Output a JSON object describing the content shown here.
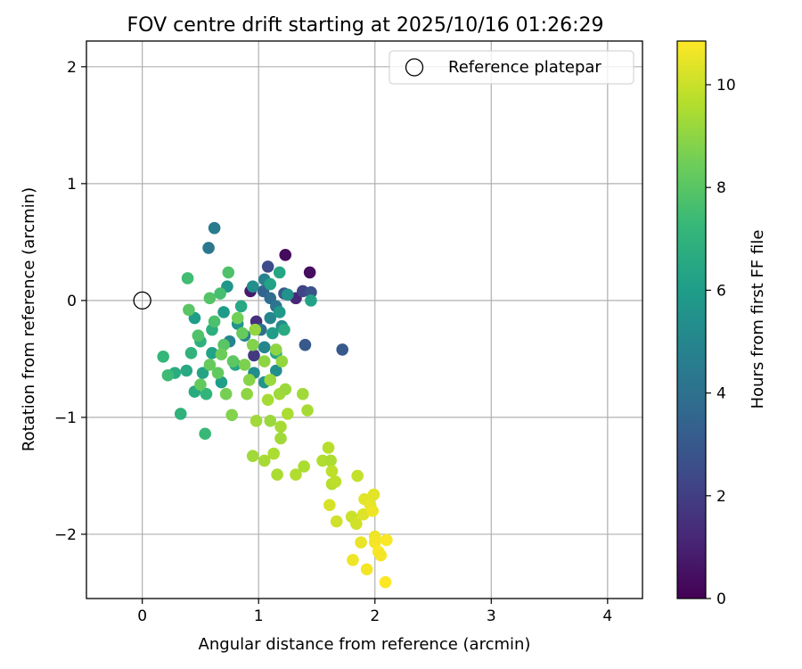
{
  "chart_data": {
    "type": "scatter",
    "title": "FOV centre drift starting at 2025/10/16 01:26:29",
    "xlabel": "Angular distance from reference (arcmin)",
    "ylabel": "Rotation from reference (arcmin)",
    "xlim": [
      -0.48,
      4.3
    ],
    "ylim": [
      -2.55,
      2.22
    ],
    "xticks": [
      0,
      1,
      2,
      3,
      4
    ],
    "yticks": [
      -2,
      -1,
      0,
      1,
      2
    ],
    "grid": true,
    "legend": {
      "location": "upper-right",
      "entries": [
        "Reference platepar"
      ]
    },
    "reference_point": {
      "x": 0,
      "y": 0,
      "label": "Reference platepar"
    },
    "colorbar": {
      "label": "Hours from first FF file",
      "range": [
        0,
        10.85
      ],
      "ticks": [
        0,
        2,
        4,
        6,
        8,
        10
      ],
      "colormap": "viridis"
    },
    "points": [
      {
        "x": 1.23,
        "y": 0.39,
        "c": 0.3
      },
      {
        "x": 1.44,
        "y": 0.24,
        "c": 0.4
      },
      {
        "x": 1.32,
        "y": 0.02,
        "c": 1.2
      },
      {
        "x": 0.93,
        "y": 0.08,
        "c": 0.8
      },
      {
        "x": 1.08,
        "y": 0.29,
        "c": 2.5
      },
      {
        "x": 1.38,
        "y": 0.08,
        "c": 2.2
      },
      {
        "x": 1.45,
        "y": 0.07,
        "c": 2.8
      },
      {
        "x": 1.22,
        "y": 0.06,
        "c": 3.0
      },
      {
        "x": 1.4,
        "y": -0.38,
        "c": 3.0
      },
      {
        "x": 1.72,
        "y": -0.42,
        "c": 3.0
      },
      {
        "x": 0.98,
        "y": -0.18,
        "c": 1.5
      },
      {
        "x": 0.96,
        "y": -0.47,
        "c": 1.8
      },
      {
        "x": 1.04,
        "y": 0.08,
        "c": 3.5
      },
      {
        "x": 1.1,
        "y": 0.02,
        "c": 3.8
      },
      {
        "x": 1.15,
        "y": -0.05,
        "c": 4.2
      },
      {
        "x": 1.02,
        "y": -0.25,
        "c": 4.0
      },
      {
        "x": 0.62,
        "y": 0.62,
        "c": 4.5
      },
      {
        "x": 0.57,
        "y": 0.45,
        "c": 4.3
      },
      {
        "x": 1.05,
        "y": 0.18,
        "c": 4.8
      },
      {
        "x": 1.1,
        "y": -0.15,
        "c": 5.0
      },
      {
        "x": 1.2,
        "y": -0.22,
        "c": 5.2
      },
      {
        "x": 0.88,
        "y": -0.3,
        "c": 4.8
      },
      {
        "x": 1.05,
        "y": -0.4,
        "c": 5.0
      },
      {
        "x": 0.95,
        "y": 0.12,
        "c": 5.4
      },
      {
        "x": 1.25,
        "y": 0.05,
        "c": 5.5
      },
      {
        "x": 1.45,
        "y": 0.0,
        "c": 6.2
      },
      {
        "x": 1.18,
        "y": -0.1,
        "c": 5.8
      },
      {
        "x": 0.75,
        "y": -0.35,
        "c": 4.9
      },
      {
        "x": 0.82,
        "y": -0.2,
        "c": 5.6
      },
      {
        "x": 1.12,
        "y": -0.28,
        "c": 6.0
      },
      {
        "x": 0.96,
        "y": -0.62,
        "c": 5.3
      },
      {
        "x": 1.05,
        "y": -0.7,
        "c": 5.6
      },
      {
        "x": 1.15,
        "y": -0.6,
        "c": 5.4
      },
      {
        "x": 0.7,
        "y": -0.1,
        "c": 5.9
      },
      {
        "x": 0.6,
        "y": -0.45,
        "c": 6.2
      },
      {
        "x": 0.45,
        "y": -0.15,
        "c": 6.0
      },
      {
        "x": 0.52,
        "y": -0.62,
        "c": 6.3
      },
      {
        "x": 0.68,
        "y": -0.7,
        "c": 6.1
      },
      {
        "x": 0.8,
        "y": -0.55,
        "c": 6.4
      },
      {
        "x": 0.38,
        "y": -0.6,
        "c": 6.5
      },
      {
        "x": 0.28,
        "y": -0.62,
        "c": 6.7
      },
      {
        "x": 0.45,
        "y": -0.78,
        "c": 6.6
      },
      {
        "x": 0.73,
        "y": 0.12,
        "c": 5.7
      },
      {
        "x": 1.18,
        "y": 0.24,
        "c": 6.4
      },
      {
        "x": 1.1,
        "y": 0.14,
        "c": 6.2
      },
      {
        "x": 1.22,
        "y": -0.25,
        "c": 6.6
      },
      {
        "x": 1.15,
        "y": -0.45,
        "c": 6.3
      },
      {
        "x": 0.85,
        "y": -0.05,
        "c": 6.5
      },
      {
        "x": 0.6,
        "y": -0.25,
        "c": 6.8
      },
      {
        "x": 0.5,
        "y": -0.35,
        "c": 6.9
      },
      {
        "x": 0.42,
        "y": -0.45,
        "c": 7.0
      },
      {
        "x": 0.55,
        "y": -0.8,
        "c": 7.1
      },
      {
        "x": 0.33,
        "y": -0.97,
        "c": 7.0
      },
      {
        "x": 0.54,
        "y": -1.14,
        "c": 7.3
      },
      {
        "x": 0.18,
        "y": -0.48,
        "c": 7.2
      },
      {
        "x": 0.22,
        "y": -0.64,
        "c": 7.4
      },
      {
        "x": 0.39,
        "y": 0.19,
        "c": 7.5
      },
      {
        "x": 0.74,
        "y": 0.24,
        "c": 7.8
      },
      {
        "x": 0.58,
        "y": 0.02,
        "c": 7.9
      },
      {
        "x": 0.67,
        "y": 0.06,
        "c": 7.6
      },
      {
        "x": 0.62,
        "y": -0.18,
        "c": 7.7
      },
      {
        "x": 0.48,
        "y": -0.3,
        "c": 7.8
      },
      {
        "x": 0.7,
        "y": -0.38,
        "c": 8.0
      },
      {
        "x": 0.78,
        "y": -0.52,
        "c": 8.1
      },
      {
        "x": 0.65,
        "y": -0.62,
        "c": 8.2
      },
      {
        "x": 0.58,
        "y": -0.55,
        "c": 8.3
      },
      {
        "x": 0.5,
        "y": -0.72,
        "c": 8.2
      },
      {
        "x": 0.68,
        "y": -0.46,
        "c": 8.4
      },
      {
        "x": 0.86,
        "y": -0.28,
        "c": 8.3
      },
      {
        "x": 0.82,
        "y": -0.15,
        "c": 8.5
      },
      {
        "x": 0.4,
        "y": -0.08,
        "c": 8.0
      },
      {
        "x": 0.77,
        "y": -0.98,
        "c": 8.8
      },
      {
        "x": 0.72,
        "y": -0.8,
        "c": 8.6
      },
      {
        "x": 0.88,
        "y": -0.55,
        "c": 8.7
      },
      {
        "x": 0.9,
        "y": -0.8,
        "c": 9.0
      },
      {
        "x": 0.92,
        "y": -0.68,
        "c": 8.9
      },
      {
        "x": 0.95,
        "y": -0.38,
        "c": 8.8
      },
      {
        "x": 0.97,
        "y": -0.25,
        "c": 9.1
      },
      {
        "x": 1.05,
        "y": -0.52,
        "c": 9.0
      },
      {
        "x": 1.1,
        "y": -0.68,
        "c": 9.2
      },
      {
        "x": 1.15,
        "y": -0.42,
        "c": 9.0
      },
      {
        "x": 1.2,
        "y": -0.52,
        "c": 9.1
      },
      {
        "x": 1.18,
        "y": -0.8,
        "c": 9.3
      },
      {
        "x": 1.23,
        "y": -0.76,
        "c": 9.2
      },
      {
        "x": 1.08,
        "y": -0.85,
        "c": 9.4
      },
      {
        "x": 0.98,
        "y": -1.03,
        "c": 9.3
      },
      {
        "x": 1.1,
        "y": -1.03,
        "c": 9.2
      },
      {
        "x": 1.19,
        "y": -1.08,
        "c": 9.4
      },
      {
        "x": 1.19,
        "y": -1.18,
        "c": 9.3
      },
      {
        "x": 1.25,
        "y": -0.97,
        "c": 9.5
      },
      {
        "x": 0.95,
        "y": -1.33,
        "c": 9.3
      },
      {
        "x": 1.05,
        "y": -1.37,
        "c": 9.4
      },
      {
        "x": 1.13,
        "y": -1.31,
        "c": 9.5
      },
      {
        "x": 1.38,
        "y": -0.8,
        "c": 9.3
      },
      {
        "x": 1.42,
        "y": -0.94,
        "c": 9.4
      },
      {
        "x": 1.16,
        "y": -1.49,
        "c": 9.5
      },
      {
        "x": 1.32,
        "y": -1.49,
        "c": 9.6
      },
      {
        "x": 1.39,
        "y": -1.42,
        "c": 9.5
      },
      {
        "x": 1.55,
        "y": -1.37,
        "c": 9.6
      },
      {
        "x": 1.6,
        "y": -1.26,
        "c": 9.7
      },
      {
        "x": 1.62,
        "y": -1.37,
        "c": 9.5
      },
      {
        "x": 1.63,
        "y": -1.46,
        "c": 9.8
      },
      {
        "x": 1.63,
        "y": -1.57,
        "c": 9.7
      },
      {
        "x": 1.66,
        "y": -1.55,
        "c": 9.8
      },
      {
        "x": 1.85,
        "y": -1.5,
        "c": 9.9
      },
      {
        "x": 1.61,
        "y": -1.75,
        "c": 10.2
      },
      {
        "x": 1.67,
        "y": -1.89,
        "c": 10.1
      },
      {
        "x": 1.8,
        "y": -1.85,
        "c": 10.0
      },
      {
        "x": 1.84,
        "y": -1.91,
        "c": 10.1
      },
      {
        "x": 1.9,
        "y": -1.83,
        "c": 10.3
      },
      {
        "x": 1.91,
        "y": -1.7,
        "c": 10.4
      },
      {
        "x": 1.96,
        "y": -1.75,
        "c": 10.5
      },
      {
        "x": 1.98,
        "y": -1.8,
        "c": 10.6
      },
      {
        "x": 1.99,
        "y": -1.66,
        "c": 10.4
      },
      {
        "x": 1.88,
        "y": -2.07,
        "c": 10.5
      },
      {
        "x": 2.0,
        "y": -2.02,
        "c": 10.6
      },
      {
        "x": 2.0,
        "y": -2.07,
        "c": 10.7
      },
      {
        "x": 1.81,
        "y": -2.22,
        "c": 10.6
      },
      {
        "x": 1.93,
        "y": -2.3,
        "c": 10.7
      },
      {
        "x": 2.03,
        "y": -2.15,
        "c": 10.8
      },
      {
        "x": 2.05,
        "y": -2.18,
        "c": 10.7
      },
      {
        "x": 2.1,
        "y": -2.05,
        "c": 10.8
      },
      {
        "x": 2.09,
        "y": -2.41,
        "c": 10.85
      }
    ]
  }
}
